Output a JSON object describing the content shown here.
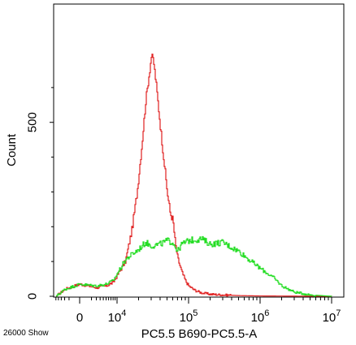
{
  "chart_data": {
    "type": "line",
    "title": "",
    "xlabel": "PC5.5 B690-PC5.5-A",
    "ylabel": "Count",
    "x_scale": "biexponential",
    "xlim": [
      -300,
      10000000
    ],
    "ylim": [
      0,
      700
    ],
    "footer_text": "26000 Show",
    "y_ticks": [
      {
        "value": 0,
        "label": "0"
      },
      {
        "value": 500,
        "label": "500"
      }
    ],
    "x_ticks": [
      {
        "value": 0,
        "label": "0",
        "sup": ""
      },
      {
        "value": 10000,
        "label": "10",
        "sup": "4"
      },
      {
        "value": 100000,
        "label": "10",
        "sup": "5"
      },
      {
        "value": 1000000,
        "label": "10",
        "sup": "6"
      },
      {
        "value": 10000000,
        "label": "10",
        "sup": "7"
      }
    ],
    "series": [
      {
        "color": "#e02020",
        "x": [
          -250,
          -100,
          0,
          500,
          2000,
          5000,
          8000,
          10000,
          13000,
          16000,
          19000,
          22000,
          25000,
          28000,
          30000,
          32000,
          35000,
          40000,
          45000,
          50000,
          55000,
          60000,
          65000,
          70000,
          80000,
          90000,
          100000,
          120000,
          150000,
          200000,
          300000,
          500000,
          1000000,
          10000000
        ],
        "y": [
          0,
          20,
          35,
          30,
          25,
          30,
          40,
          60,
          100,
          190,
          300,
          430,
          560,
          640,
          690,
          680,
          610,
          490,
          390,
          300,
          240,
          220,
          150,
          110,
          70,
          45,
          30,
          18,
          10,
          6,
          4,
          2,
          1,
          0
        ]
      },
      {
        "color": "#22dd22",
        "x": [
          -250,
          -100,
          0,
          500,
          2000,
          5000,
          8000,
          10000,
          13000,
          16000,
          20000,
          25000,
          30000,
          40000,
          50000,
          60000,
          70000,
          80000,
          100000,
          150000,
          200000,
          300000,
          400000,
          500000,
          700000,
          1000000,
          1500000,
          2000000,
          3000000,
          5000000,
          10000000
        ],
        "y": [
          0,
          20,
          35,
          32,
          30,
          35,
          45,
          65,
          105,
          120,
          135,
          155,
          145,
          150,
          160,
          155,
          130,
          150,
          160,
          165,
          150,
          155,
          140,
          130,
          105,
          80,
          55,
          30,
          12,
          4,
          0
        ]
      }
    ]
  }
}
